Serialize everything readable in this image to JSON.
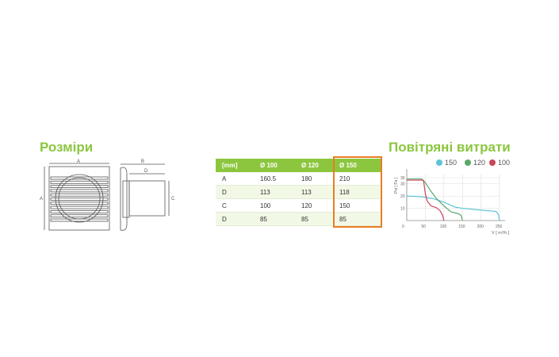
{
  "sizes": {
    "title": "Розміри",
    "labels": {
      "a_width": "A",
      "a_height": "A",
      "b": "B",
      "d": "D",
      "c": "C"
    }
  },
  "table": {
    "headers": [
      "[mm]",
      "Ø 100",
      "Ø 120",
      "Ø 150"
    ],
    "rows": [
      [
        "A",
        "160.5",
        "180",
        "210"
      ],
      [
        "D",
        "113",
        "113",
        "118"
      ],
      [
        "C",
        "100",
        "120",
        "150"
      ],
      [
        "D",
        "85",
        "85",
        "85"
      ]
    ],
    "highlight_color": "#e87d22",
    "header_color": "#8cc63f"
  },
  "airflow": {
    "title": "Повітряні витрати"
  },
  "chart_data": {
    "type": "line",
    "xlabel": "V [ m³/h ]",
    "ylabel": "Pst [ Pa ]",
    "xlim": [
      0,
      250
    ],
    "ylim": [
      0,
      40
    ],
    "xticks": [
      "0",
      "50",
      "100",
      "150",
      "200",
      "250"
    ],
    "yticks": [
      "10",
      "20",
      "30",
      "35"
    ],
    "legend_placement": "top",
    "series": [
      {
        "name": "150",
        "color": "#5bc4d6",
        "x": [
          0,
          40,
          70,
          100,
          130,
          150,
          200,
          240,
          247,
          250
        ],
        "y": [
          20,
          19.5,
          18,
          15,
          11,
          10,
          8.5,
          7.5,
          5,
          0
        ]
      },
      {
        "name": "120",
        "color": "#5ba86a",
        "x": [
          0,
          40,
          50,
          65,
          80,
          100,
          120,
          140,
          147,
          150
        ],
        "y": [
          34,
          34,
          31,
          24,
          18,
          12,
          7,
          5.5,
          4,
          0
        ]
      },
      {
        "name": "100",
        "color": "#c9455a",
        "x": [
          0,
          45,
          50,
          55,
          65,
          80,
          90,
          97,
          100
        ],
        "y": [
          33,
          33,
          22,
          16,
          12,
          10.5,
          8,
          4,
          0
        ]
      }
    ]
  }
}
